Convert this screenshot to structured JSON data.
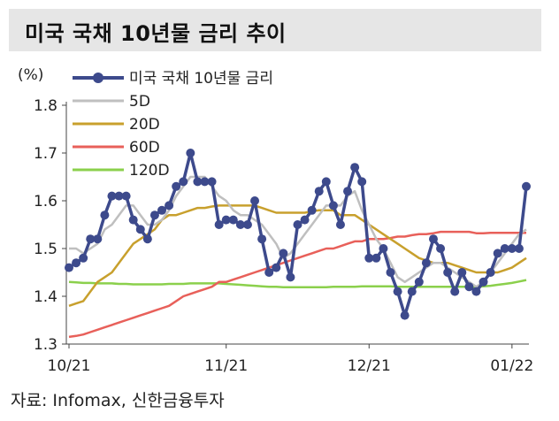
{
  "title": "미국 국채 10년물 금리 추이",
  "source": "자료: Infomax, 신한금융투자",
  "chart_data": {
    "type": "line",
    "y_unit_label": "(%)",
    "ylim": [
      1.3,
      1.8
    ],
    "y_ticks": [
      "1.3",
      "1.4",
      "1.5",
      "1.6",
      "1.7",
      "1.8"
    ],
    "x_ticks": [
      {
        "label": "10/21",
        "index": 0
      },
      {
        "label": "11/21",
        "index": 22
      },
      {
        "label": "12/21",
        "index": 42
      },
      {
        "label": "01/22",
        "index": 62
      }
    ],
    "n_points": 65,
    "series": [
      {
        "name": "미국 국채 10년물 금리",
        "color": "#3d4a8c",
        "markers": true,
        "values": [
          1.46,
          1.47,
          1.48,
          1.52,
          1.52,
          1.57,
          1.61,
          1.61,
          1.61,
          1.56,
          1.54,
          1.52,
          1.57,
          1.58,
          1.59,
          1.63,
          1.64,
          1.7,
          1.64,
          1.64,
          1.64,
          1.55,
          1.56,
          1.56,
          1.55,
          1.55,
          1.6,
          1.52,
          1.45,
          1.46,
          1.49,
          1.44,
          1.55,
          1.56,
          1.58,
          1.62,
          1.64,
          1.59,
          1.55,
          1.62,
          1.67,
          1.64,
          1.48,
          1.48,
          1.5,
          1.45,
          1.41,
          1.36,
          1.41,
          1.43,
          1.47,
          1.52,
          1.5,
          1.45,
          1.41,
          1.45,
          1.42,
          1.41,
          1.43,
          1.45,
          1.49,
          1.5,
          1.5,
          1.5,
          1.63
        ]
      },
      {
        "name": "5D",
        "color": "#bfbfbf",
        "markers": false,
        "values": [
          1.5,
          1.5,
          1.49,
          1.5,
          1.51,
          1.54,
          1.55,
          1.57,
          1.59,
          1.59,
          1.57,
          1.55,
          1.55,
          1.56,
          1.58,
          1.61,
          1.63,
          1.65,
          1.65,
          1.65,
          1.63,
          1.61,
          1.6,
          1.58,
          1.57,
          1.57,
          1.56,
          1.55,
          1.53,
          1.51,
          1.48,
          1.49,
          1.51,
          1.53,
          1.55,
          1.57,
          1.59,
          1.59,
          1.59,
          1.61,
          1.62,
          1.58,
          1.55,
          1.52,
          1.5,
          1.47,
          1.44,
          1.43,
          1.44,
          1.45,
          1.46,
          1.47,
          1.47,
          1.46,
          1.45,
          1.44,
          1.43,
          1.42,
          1.43,
          1.45,
          1.47,
          1.49,
          1.51,
          1.53,
          1.54
        ]
      },
      {
        "name": "20D",
        "color": "#c8a02d",
        "markers": false,
        "values": [
          1.38,
          1.385,
          1.39,
          1.41,
          1.43,
          1.44,
          1.45,
          1.47,
          1.49,
          1.51,
          1.52,
          1.53,
          1.54,
          1.56,
          1.57,
          1.57,
          1.575,
          1.58,
          1.585,
          1.585,
          1.588,
          1.59,
          1.59,
          1.59,
          1.59,
          1.59,
          1.59,
          1.585,
          1.58,
          1.575,
          1.575,
          1.575,
          1.575,
          1.575,
          1.578,
          1.58,
          1.58,
          1.58,
          1.57,
          1.57,
          1.57,
          1.56,
          1.55,
          1.54,
          1.53,
          1.52,
          1.51,
          1.5,
          1.49,
          1.48,
          1.475,
          1.47,
          1.47,
          1.47,
          1.465,
          1.46,
          1.455,
          1.45,
          1.45,
          1.45,
          1.45,
          1.455,
          1.46,
          1.47,
          1.48
        ]
      },
      {
        "name": "60D",
        "color": "#e8605a",
        "markers": false,
        "values": [
          1.315,
          1.317,
          1.32,
          1.325,
          1.33,
          1.335,
          1.34,
          1.345,
          1.35,
          1.355,
          1.36,
          1.365,
          1.37,
          1.375,
          1.38,
          1.39,
          1.4,
          1.405,
          1.41,
          1.415,
          1.42,
          1.43,
          1.43,
          1.435,
          1.44,
          1.445,
          1.45,
          1.455,
          1.46,
          1.465,
          1.47,
          1.475,
          1.48,
          1.485,
          1.49,
          1.495,
          1.5,
          1.5,
          1.505,
          1.51,
          1.515,
          1.515,
          1.52,
          1.52,
          1.52,
          1.522,
          1.525,
          1.525,
          1.528,
          1.53,
          1.53,
          1.532,
          1.535,
          1.535,
          1.535,
          1.535,
          1.535,
          1.532,
          1.532,
          1.533,
          1.533,
          1.533,
          1.533,
          1.533,
          1.533
        ]
      },
      {
        "name": "120D",
        "color": "#8bd04c",
        "markers": false,
        "values": [
          1.43,
          1.429,
          1.428,
          1.428,
          1.427,
          1.427,
          1.427,
          1.426,
          1.426,
          1.425,
          1.425,
          1.425,
          1.425,
          1.425,
          1.426,
          1.426,
          1.426,
          1.427,
          1.427,
          1.427,
          1.427,
          1.427,
          1.426,
          1.425,
          1.424,
          1.423,
          1.422,
          1.421,
          1.42,
          1.42,
          1.419,
          1.419,
          1.419,
          1.419,
          1.419,
          1.419,
          1.419,
          1.42,
          1.42,
          1.42,
          1.42,
          1.421,
          1.421,
          1.421,
          1.421,
          1.421,
          1.42,
          1.42,
          1.42,
          1.42,
          1.42,
          1.42,
          1.42,
          1.42,
          1.42,
          1.42,
          1.42,
          1.42,
          1.421,
          1.422,
          1.424,
          1.426,
          1.428,
          1.431,
          1.434
        ]
      }
    ]
  }
}
